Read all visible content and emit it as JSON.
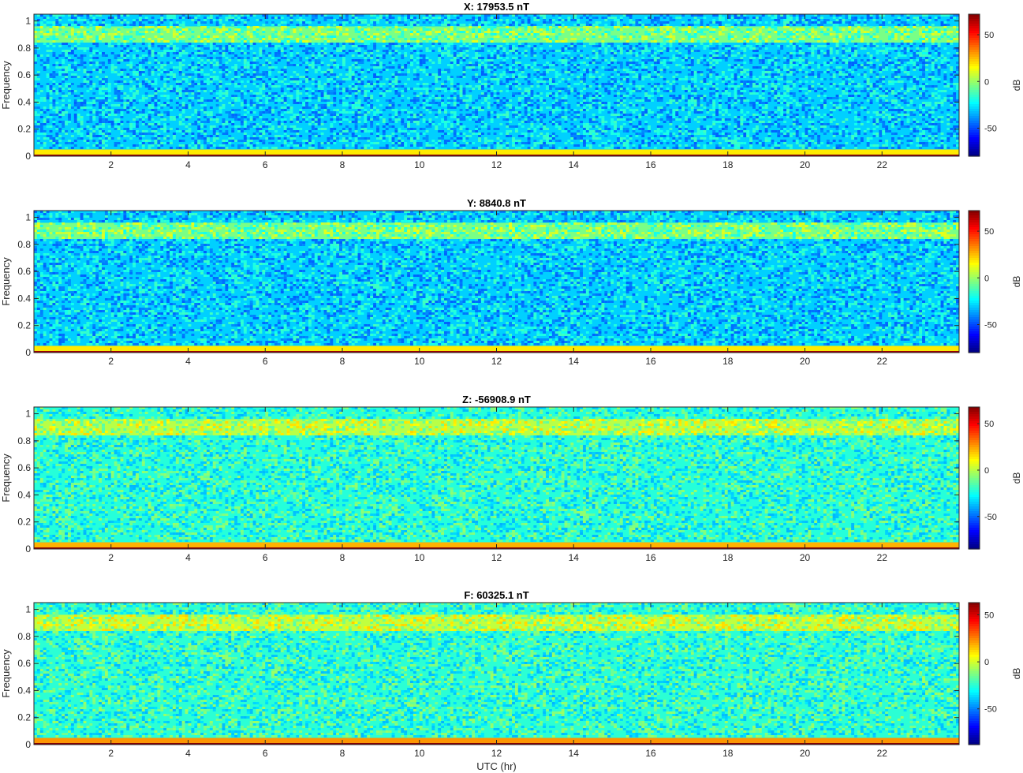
{
  "chart_data": [
    {
      "type": "heatmap",
      "title": "X: 17953.5 nT",
      "ylabel": "Frequency",
      "xlabel": "",
      "xlim": [
        0,
        24
      ],
      "ylim": [
        0,
        1.05
      ],
      "xticks": [
        2,
        4,
        6,
        8,
        10,
        12,
        14,
        16,
        18,
        20,
        22
      ],
      "yticks": [
        0,
        0.2,
        0.4,
        0.6,
        0.8,
        1
      ],
      "colorbar": {
        "label": "dB",
        "ticks": [
          50,
          0,
          -50
        ],
        "range": [
          -80,
          72
        ],
        "colormap": "jet"
      },
      "bands": [
        {
          "frequency_range": [
            0,
            0.012
          ],
          "level_db": 68
        },
        {
          "frequency_range": [
            0.012,
            0.05
          ],
          "level_db": 18
        },
        {
          "frequency_range": [
            0.84,
            0.96
          ],
          "level_db": -5
        },
        {
          "frequency_range": [
            0.05,
            0.84
          ],
          "level_db": -30
        }
      ]
    },
    {
      "type": "heatmap",
      "title": "Y: 8840.8 nT",
      "ylabel": "Frequency",
      "xlabel": "",
      "xlim": [
        0,
        24
      ],
      "ylim": [
        0,
        1.05
      ],
      "xticks": [
        2,
        4,
        6,
        8,
        10,
        12,
        14,
        16,
        18,
        20,
        22
      ],
      "yticks": [
        0,
        0.2,
        0.4,
        0.6,
        0.8,
        1
      ],
      "colorbar": {
        "label": "dB",
        "ticks": [
          50,
          0,
          -50
        ],
        "range": [
          -80,
          72
        ],
        "colormap": "jet"
      },
      "bands": [
        {
          "frequency_range": [
            0,
            0.012
          ],
          "level_db": 68
        },
        {
          "frequency_range": [
            0.012,
            0.05
          ],
          "level_db": 18
        },
        {
          "frequency_range": [
            0.84,
            0.96
          ],
          "level_db": -5
        },
        {
          "frequency_range": [
            0.05,
            0.84
          ],
          "level_db": -30
        }
      ]
    },
    {
      "type": "heatmap",
      "title": "Z: -56908.9 nT",
      "ylabel": "Frequency",
      "xlabel": "",
      "xlim": [
        0,
        24
      ],
      "ylim": [
        0,
        1.05
      ],
      "xticks": [
        2,
        4,
        6,
        8,
        10,
        12,
        14,
        16,
        18,
        20,
        22
      ],
      "yticks": [
        0,
        0.2,
        0.4,
        0.6,
        0.8,
        1
      ],
      "colorbar": {
        "label": "dB",
        "ticks": [
          50,
          0,
          -50
        ],
        "range": [
          -85,
          68
        ],
        "colormap": "jet"
      },
      "bands": [
        {
          "frequency_range": [
            0,
            0.012
          ],
          "level_db": 65
        },
        {
          "frequency_range": [
            0.012,
            0.05
          ],
          "level_db": 22
        },
        {
          "frequency_range": [
            0.84,
            0.96
          ],
          "level_db": 0
        },
        {
          "frequency_range": [
            0.05,
            0.84
          ],
          "level_db": -22
        }
      ]
    },
    {
      "type": "heatmap",
      "title": "F: 60325.1 nT",
      "ylabel": "Frequency",
      "xlabel": "UTC (hr)",
      "xlim": [
        0,
        24
      ],
      "ylim": [
        0,
        1.05
      ],
      "xticks": [
        2,
        4,
        6,
        8,
        10,
        12,
        14,
        16,
        18,
        20,
        22
      ],
      "yticks": [
        0,
        0.2,
        0.4,
        0.6,
        0.8,
        1
      ],
      "colorbar": {
        "label": "dB",
        "ticks": [
          50,
          0,
          -50
        ],
        "range": [
          -88,
          63
        ],
        "colormap": "jet"
      },
      "bands": [
        {
          "frequency_range": [
            0,
            0.012
          ],
          "level_db": 62
        },
        {
          "frequency_range": [
            0.012,
            0.05
          ],
          "level_db": 22
        },
        {
          "frequency_range": [
            0.84,
            0.96
          ],
          "level_db": -3
        },
        {
          "frequency_range": [
            0.05,
            0.84
          ],
          "level_db": -25
        }
      ]
    }
  ]
}
